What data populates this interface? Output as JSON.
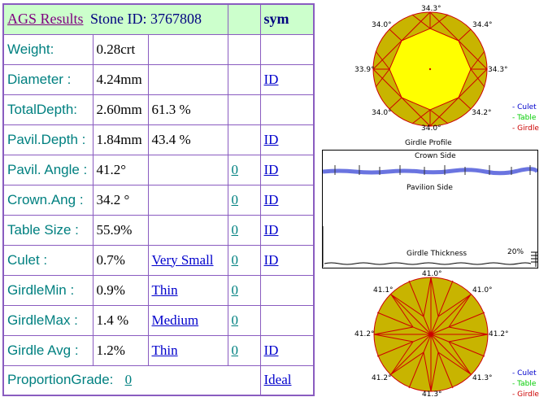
{
  "header": {
    "title": "AGS  Results",
    "stone_id_label": "Stone ID:  3767808",
    "sym": "sym"
  },
  "rows": [
    {
      "label": "Weight:",
      "v1": "0.28crt",
      "v2": "",
      "v3": "",
      "v4": ""
    },
    {
      "label": "Diameter :",
      "v1": "4.24mm",
      "v2": "",
      "v3": "",
      "v4": "ID"
    },
    {
      "label": "TotalDepth:",
      "v1": "2.60mm",
      "v2": "61.3 %",
      "v3": "",
      "v4": ""
    },
    {
      "label": "Pavil.Depth :",
      "v1": "1.84mm",
      "v2": "43.4 %",
      "v3": "",
      "v4": "ID"
    },
    {
      "label": "Pavil. Angle :",
      "v1": "41.2°",
      "v2": "",
      "v3": "0",
      "v4": "ID "
    },
    {
      "label": "Crown.Ang :",
      "v1": "34.2 °",
      "v2": "",
      "v3": "0",
      "v4": "ID"
    },
    {
      "label": "Table Size :",
      "v1": "55.9%",
      "v2": "",
      "v3": "0",
      "v4": "ID"
    },
    {
      "label": "Culet :",
      "v1": "0.7%",
      "v2": "Very Small",
      "v3": "0",
      "v4": "ID"
    },
    {
      "label": "GirdleMin :",
      "v1": "0.9%",
      "v2": "Thin",
      "v3": "0",
      "v4": ""
    },
    {
      "label": "GirdleMax :",
      "v1": "1.4 %",
      "v2": "Medium ",
      "v3": "0",
      "v4": ""
    },
    {
      "label": "Girdle Avg :",
      "v1": "1.2%",
      "v2": "Thin ",
      "v3": "0 ",
      "v4": "ID"
    }
  ],
  "footer": {
    "label": "ProportionGrade:",
    "value": "0",
    "grade": "Ideal "
  },
  "crown": {
    "angles": [
      "34.3°",
      "34.4°",
      "34.3°",
      "34.2°",
      "34.0°",
      "34.0°",
      "33.9°",
      "34.0°"
    ],
    "caption": "Girdle Profile"
  },
  "profile": {
    "crown_side": "Crown Side",
    "pavilion_side": "Pavilion Side",
    "girdle_thickness": "Girdle Thickness",
    "pct": "20%"
  },
  "pavilion": {
    "angles": [
      "41.0°",
      "41.0°",
      "41.2°",
      "41.3°",
      "41.3°",
      "41.2°",
      "41.2°",
      "41.1°"
    ]
  },
  "legend": {
    "culet": "- Culet",
    "table": "- Table",
    "girdle": "- Girdle"
  },
  "colors": {
    "border": "#8a5cc0",
    "label": "#008080",
    "header_bg": "#ccffcc",
    "link": "#0000cc",
    "facet": "#c8b400",
    "facet_line": "#cc0000",
    "table_fill": "#ffff00"
  }
}
